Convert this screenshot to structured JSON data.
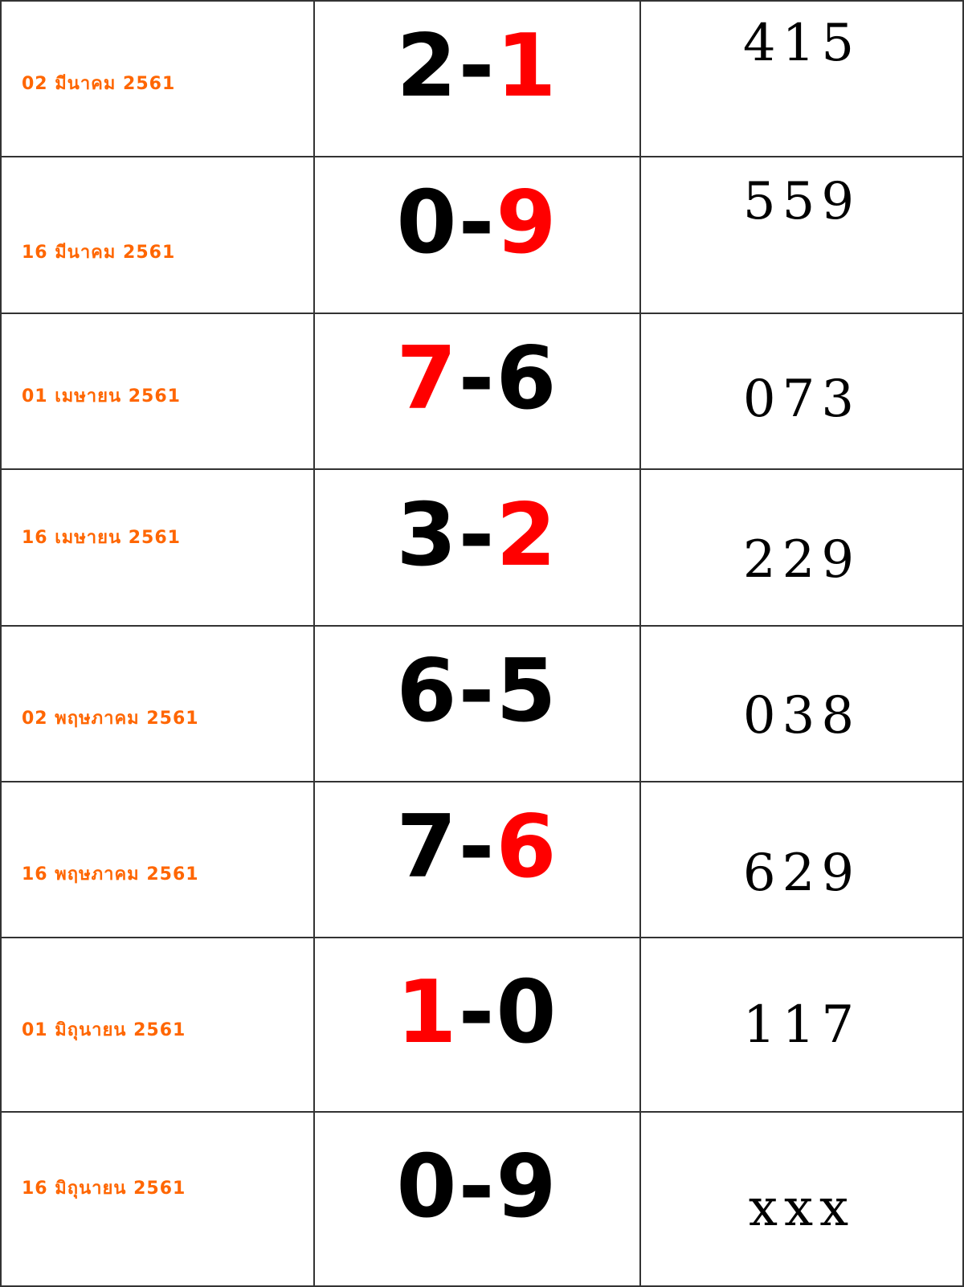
{
  "colors": {
    "date": "#ff6600",
    "highlight": "#ff0000",
    "digit": "#000000"
  },
  "rows": [
    {
      "date": "02 มีนาคม 2561",
      "left": "2",
      "sep": "-",
      "right": "1",
      "highlight": "right",
      "result": "415"
    },
    {
      "date": "16 มีนาคม 2561",
      "left": "0",
      "sep": "-",
      "right": "9",
      "highlight": "right",
      "result": "559"
    },
    {
      "date": "01 เมษายน 2561",
      "left": "7",
      "sep": "-",
      "right": "6",
      "highlight": "left",
      "result": "073"
    },
    {
      "date": "16 เมษายน 2561",
      "left": "3",
      "sep": "-",
      "right": "2",
      "highlight": "right",
      "result": "229"
    },
    {
      "date": "02 พฤษภาคม 2561",
      "left": "6",
      "sep": "-",
      "right": "5",
      "highlight": "none",
      "result": "038"
    },
    {
      "date": "16 พฤษภาคม 2561",
      "left": "7",
      "sep": "-",
      "right": "6",
      "highlight": "right",
      "result": "629"
    },
    {
      "date": "01 มิถุนายน 2561",
      "left": "1",
      "sep": "-",
      "right": "0",
      "highlight": "left",
      "result": "117"
    },
    {
      "date": "16 มิถุนายน 2561",
      "left": "0",
      "sep": "-",
      "right": "9",
      "highlight": "none",
      "result": "xxx"
    }
  ]
}
